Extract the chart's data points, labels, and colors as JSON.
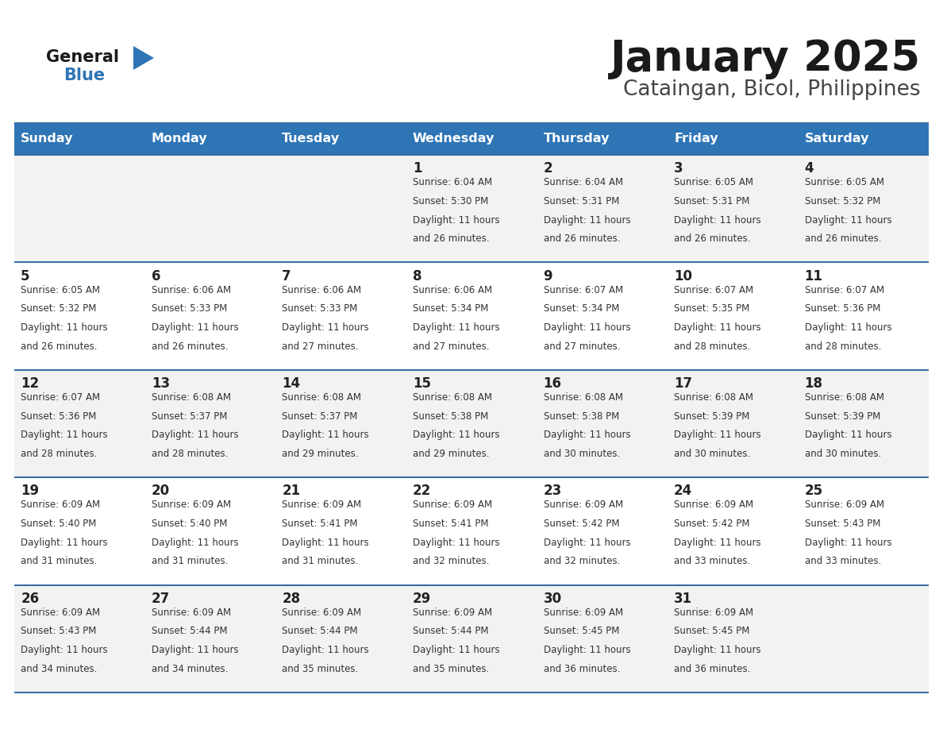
{
  "title": "January 2025",
  "subtitle": "Cataingan, Bicol, Philippines",
  "days_of_week": [
    "Sunday",
    "Monday",
    "Tuesday",
    "Wednesday",
    "Thursday",
    "Friday",
    "Saturday"
  ],
  "header_bg": "#2E75B6",
  "header_text_color": "#FFFFFF",
  "row_bg_odd": "#F2F2F2",
  "row_bg_even": "#FFFFFF",
  "cell_border_color": "#3A6EA5",
  "day_num_color": "#222222",
  "cell_text_color": "#333333",
  "title_color": "#1a1a1a",
  "subtitle_color": "#444444",
  "logo_general_color": "#1a1a1a",
  "logo_blue_color": "#2E75B6",
  "figwidth": 11.88,
  "figheight": 9.18,
  "calendar_data": [
    {
      "day": 1,
      "col": 3,
      "row": 0,
      "sunrise": "6:04 AM",
      "sunset": "5:30 PM",
      "daylight_hours": 11,
      "daylight_minutes": 26
    },
    {
      "day": 2,
      "col": 4,
      "row": 0,
      "sunrise": "6:04 AM",
      "sunset": "5:31 PM",
      "daylight_hours": 11,
      "daylight_minutes": 26
    },
    {
      "day": 3,
      "col": 5,
      "row": 0,
      "sunrise": "6:05 AM",
      "sunset": "5:31 PM",
      "daylight_hours": 11,
      "daylight_minutes": 26
    },
    {
      "day": 4,
      "col": 6,
      "row": 0,
      "sunrise": "6:05 AM",
      "sunset": "5:32 PM",
      "daylight_hours": 11,
      "daylight_minutes": 26
    },
    {
      "day": 5,
      "col": 0,
      "row": 1,
      "sunrise": "6:05 AM",
      "sunset": "5:32 PM",
      "daylight_hours": 11,
      "daylight_minutes": 26
    },
    {
      "day": 6,
      "col": 1,
      "row": 1,
      "sunrise": "6:06 AM",
      "sunset": "5:33 PM",
      "daylight_hours": 11,
      "daylight_minutes": 26
    },
    {
      "day": 7,
      "col": 2,
      "row": 1,
      "sunrise": "6:06 AM",
      "sunset": "5:33 PM",
      "daylight_hours": 11,
      "daylight_minutes": 27
    },
    {
      "day": 8,
      "col": 3,
      "row": 1,
      "sunrise": "6:06 AM",
      "sunset": "5:34 PM",
      "daylight_hours": 11,
      "daylight_minutes": 27
    },
    {
      "day": 9,
      "col": 4,
      "row": 1,
      "sunrise": "6:07 AM",
      "sunset": "5:34 PM",
      "daylight_hours": 11,
      "daylight_minutes": 27
    },
    {
      "day": 10,
      "col": 5,
      "row": 1,
      "sunrise": "6:07 AM",
      "sunset": "5:35 PM",
      "daylight_hours": 11,
      "daylight_minutes": 28
    },
    {
      "day": 11,
      "col": 6,
      "row": 1,
      "sunrise": "6:07 AM",
      "sunset": "5:36 PM",
      "daylight_hours": 11,
      "daylight_minutes": 28
    },
    {
      "day": 12,
      "col": 0,
      "row": 2,
      "sunrise": "6:07 AM",
      "sunset": "5:36 PM",
      "daylight_hours": 11,
      "daylight_minutes": 28
    },
    {
      "day": 13,
      "col": 1,
      "row": 2,
      "sunrise": "6:08 AM",
      "sunset": "5:37 PM",
      "daylight_hours": 11,
      "daylight_minutes": 28
    },
    {
      "day": 14,
      "col": 2,
      "row": 2,
      "sunrise": "6:08 AM",
      "sunset": "5:37 PM",
      "daylight_hours": 11,
      "daylight_minutes": 29
    },
    {
      "day": 15,
      "col": 3,
      "row": 2,
      "sunrise": "6:08 AM",
      "sunset": "5:38 PM",
      "daylight_hours": 11,
      "daylight_minutes": 29
    },
    {
      "day": 16,
      "col": 4,
      "row": 2,
      "sunrise": "6:08 AM",
      "sunset": "5:38 PM",
      "daylight_hours": 11,
      "daylight_minutes": 30
    },
    {
      "day": 17,
      "col": 5,
      "row": 2,
      "sunrise": "6:08 AM",
      "sunset": "5:39 PM",
      "daylight_hours": 11,
      "daylight_minutes": 30
    },
    {
      "day": 18,
      "col": 6,
      "row": 2,
      "sunrise": "6:08 AM",
      "sunset": "5:39 PM",
      "daylight_hours": 11,
      "daylight_minutes": 30
    },
    {
      "day": 19,
      "col": 0,
      "row": 3,
      "sunrise": "6:09 AM",
      "sunset": "5:40 PM",
      "daylight_hours": 11,
      "daylight_minutes": 31
    },
    {
      "day": 20,
      "col": 1,
      "row": 3,
      "sunrise": "6:09 AM",
      "sunset": "5:40 PM",
      "daylight_hours": 11,
      "daylight_minutes": 31
    },
    {
      "day": 21,
      "col": 2,
      "row": 3,
      "sunrise": "6:09 AM",
      "sunset": "5:41 PM",
      "daylight_hours": 11,
      "daylight_minutes": 31
    },
    {
      "day": 22,
      "col": 3,
      "row": 3,
      "sunrise": "6:09 AM",
      "sunset": "5:41 PM",
      "daylight_hours": 11,
      "daylight_minutes": 32
    },
    {
      "day": 23,
      "col": 4,
      "row": 3,
      "sunrise": "6:09 AM",
      "sunset": "5:42 PM",
      "daylight_hours": 11,
      "daylight_minutes": 32
    },
    {
      "day": 24,
      "col": 5,
      "row": 3,
      "sunrise": "6:09 AM",
      "sunset": "5:42 PM",
      "daylight_hours": 11,
      "daylight_minutes": 33
    },
    {
      "day": 25,
      "col": 6,
      "row": 3,
      "sunrise": "6:09 AM",
      "sunset": "5:43 PM",
      "daylight_hours": 11,
      "daylight_minutes": 33
    },
    {
      "day": 26,
      "col": 0,
      "row": 4,
      "sunrise": "6:09 AM",
      "sunset": "5:43 PM",
      "daylight_hours": 11,
      "daylight_minutes": 34
    },
    {
      "day": 27,
      "col": 1,
      "row": 4,
      "sunrise": "6:09 AM",
      "sunset": "5:44 PM",
      "daylight_hours": 11,
      "daylight_minutes": 34
    },
    {
      "day": 28,
      "col": 2,
      "row": 4,
      "sunrise": "6:09 AM",
      "sunset": "5:44 PM",
      "daylight_hours": 11,
      "daylight_minutes": 35
    },
    {
      "day": 29,
      "col": 3,
      "row": 4,
      "sunrise": "6:09 AM",
      "sunset": "5:44 PM",
      "daylight_hours": 11,
      "daylight_minutes": 35
    },
    {
      "day": 30,
      "col": 4,
      "row": 4,
      "sunrise": "6:09 AM",
      "sunset": "5:45 PM",
      "daylight_hours": 11,
      "daylight_minutes": 36
    },
    {
      "day": 31,
      "col": 5,
      "row": 4,
      "sunrise": "6:09 AM",
      "sunset": "5:45 PM",
      "daylight_hours": 11,
      "daylight_minutes": 36
    }
  ]
}
